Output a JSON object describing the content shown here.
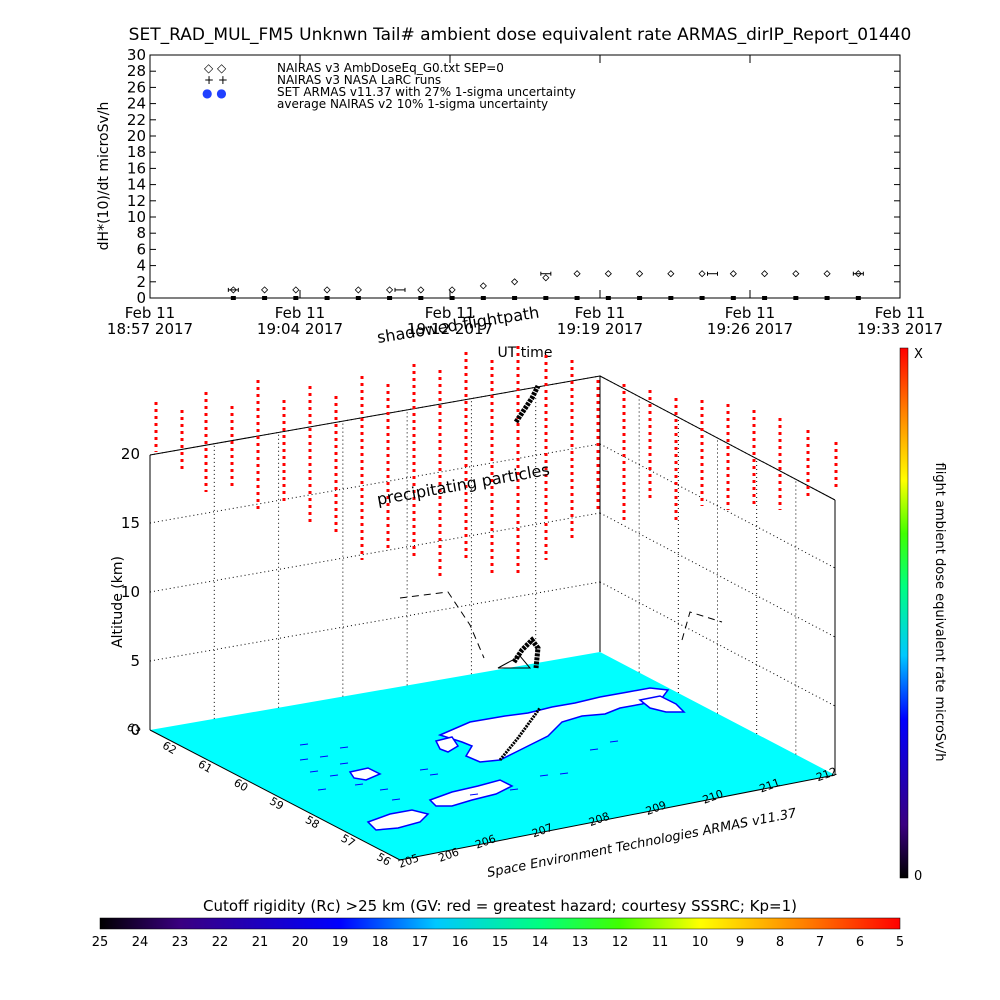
{
  "title": "SET_RAD_MUL_FM5 Unknwn Tail#  ambient dose equivalent rate ARMAS_dirIP_Report_01440",
  "chart_data": [
    {
      "type": "scatter",
      "ylabel": "dH*(10)/dt microSv/h",
      "xlabel": "UT time",
      "ylim": [
        0,
        30
      ],
      "yticks": [
        "0",
        "2",
        "4",
        "6",
        "8",
        "10",
        "12",
        "14",
        "16",
        "18",
        "20",
        "22",
        "24",
        "26",
        "28",
        "30"
      ],
      "xticks": [
        {
          "top": "Feb 11",
          "bottom": "18:57 2017"
        },
        {
          "top": "Feb 11",
          "bottom": "19:04 2017"
        },
        {
          "top": "Feb 11",
          "bottom": "19:12 2017"
        },
        {
          "top": "Feb 11",
          "bottom": "19:19 2017"
        },
        {
          "top": "Feb 11",
          "bottom": "19:26 2017"
        },
        {
          "top": "Feb 11",
          "bottom": "19:33 2017"
        }
      ],
      "xlim_minutes": [
        0,
        36
      ],
      "legend": [
        {
          "marker": "◇  ◇",
          "label": "NAIRAS v3 AmbDoseEq_G0.txt SEP=0"
        },
        {
          "marker": "+  +",
          "label": "NAIRAS v3 NASA LaRC runs"
        },
        {
          "marker": "●  ●",
          "label": "SET ARMAS v11.37 with 27% 1-sigma uncertainty"
        },
        {
          "marker": "",
          "label": "average NAIRAS v2 10% 1-sigma uncertainty"
        }
      ],
      "series": [
        {
          "marker": "diamond",
          "x": [
            4,
            5.5,
            7,
            8.5,
            10,
            11.5,
            13,
            14.5,
            16,
            17.5,
            19,
            20.5,
            22,
            23.5,
            25,
            26.5,
            28,
            29.5,
            31,
            32.5,
            34
          ],
          "values": [
            1,
            1,
            1,
            1,
            1,
            1,
            1,
            1,
            1.5,
            2,
            2.5,
            3,
            3,
            3,
            3,
            3,
            3,
            3,
            3,
            3,
            3
          ]
        },
        {
          "marker": "errorbar",
          "x": [
            4,
            12,
            19,
            27,
            34
          ],
          "values": [
            1,
            1,
            3,
            3,
            3
          ]
        },
        {
          "marker": "dot",
          "color": "#000000",
          "x": [
            4,
            5.5,
            7,
            8.5,
            10,
            11.5,
            13,
            14.5,
            16,
            17.5,
            19,
            20.5,
            22,
            23.5,
            25,
            26.5,
            28,
            29.5,
            31,
            32.5,
            34
          ],
          "values": [
            0,
            0,
            0,
            0,
            0,
            0,
            0,
            0,
            0,
            0,
            0,
            0,
            0,
            0,
            0,
            0,
            0,
            0,
            0,
            0,
            0
          ]
        }
      ]
    },
    {
      "type": "scatter",
      "ylabel": "Altitude (km)",
      "zticks": [
        "0",
        "5",
        "10",
        "15",
        "20"
      ],
      "lat_ticks": [
        "63",
        "62",
        "61",
        "60",
        "59",
        "58",
        "57",
        "56"
      ],
      "lon_ticks": [
        "206",
        "207",
        "208",
        "209",
        "210",
        "211",
        "212"
      ],
      "lon_extra_ticks": [
        "205",
        "206"
      ],
      "annotations": [
        "shadowed flightpath",
        "precipitating particles"
      ],
      "credit": "Space Environment Technologies ARMAS v11.37",
      "colorbar": {
        "label": "flight ambient dose equivalent rate microSv/h",
        "top": "X",
        "bottom": "0"
      }
    }
  ],
  "bottom_bar": {
    "label": "Cutoff rigidity (Rc) >25 km (GV: red = greatest hazard; courtesy SSSRC; Kp=1)",
    "ticks": [
      "25",
      "24",
      "23",
      "22",
      "21",
      "20",
      "19",
      "18",
      "17",
      "16",
      "15",
      "14",
      "13",
      "12",
      "11",
      "10",
      "9",
      "8",
      "7",
      "6",
      "5"
    ]
  },
  "colors": {
    "map_cyan": "#00ffff",
    "coast_blue": "#0000ff",
    "particles_red": "#ff0000",
    "scale": [
      "#000000",
      "#3a0080",
      "#0000ff",
      "#00c8ff",
      "#00ff80",
      "#40ff00",
      "#ffff00",
      "#ff8000",
      "#ff0000"
    ]
  }
}
